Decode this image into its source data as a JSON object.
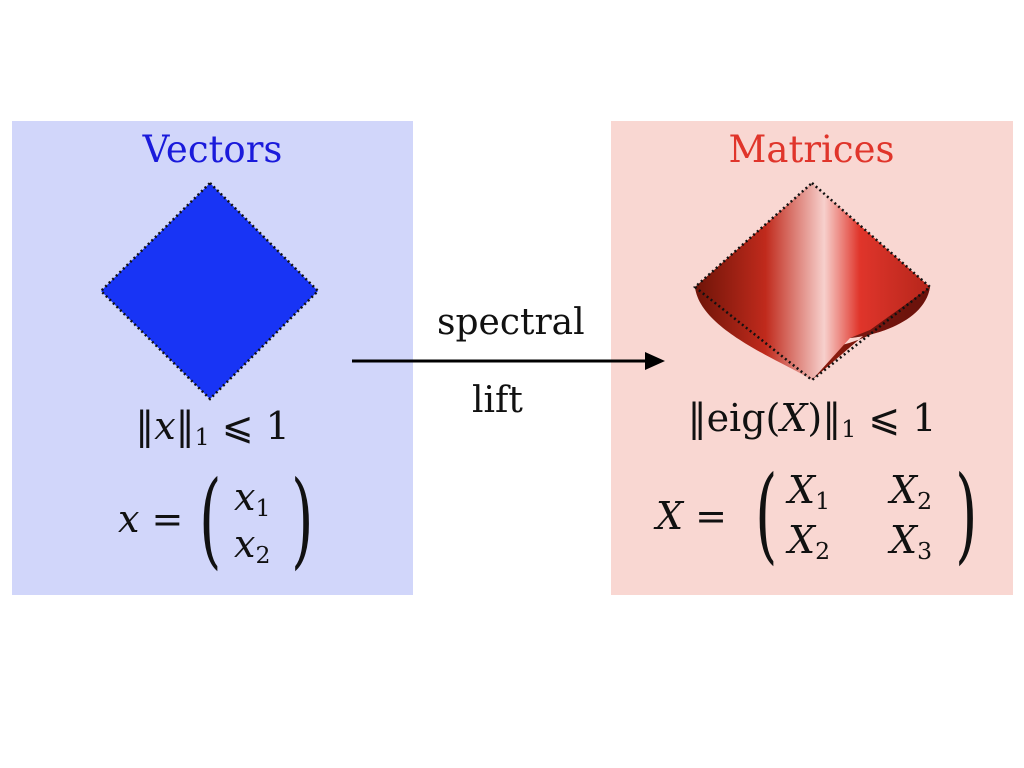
{
  "left": {
    "title": "Vectors",
    "title_color": "#1a1adb",
    "bg_color": "#d1d6fa",
    "shape_color": "#1834f5",
    "norm_x": "x",
    "norm_sub": "1",
    "norm_rhs": "⩽ 1",
    "vec_lhs": "x =",
    "vec_entries": [
      {
        "var": "x",
        "sub": "1"
      },
      {
        "var": "x",
        "sub": "2"
      }
    ]
  },
  "right": {
    "title": "Matrices",
    "title_color": "#e0352b",
    "bg_color": "#f9d7d2",
    "shape_color": "#d5352a",
    "norm_func": "eig(",
    "norm_var": "X",
    "norm_close": ")",
    "norm_sub": "1",
    "norm_rhs": "⩽ 1",
    "mat_lhs": "X =",
    "mat_entries": [
      {
        "var": "X",
        "sub": "1"
      },
      {
        "var": "X",
        "sub": "2"
      },
      {
        "var": "X",
        "sub": "2"
      },
      {
        "var": "X",
        "sub": "3"
      }
    ]
  },
  "arrow": {
    "label_top": "spectral",
    "label_bottom": "lift"
  }
}
